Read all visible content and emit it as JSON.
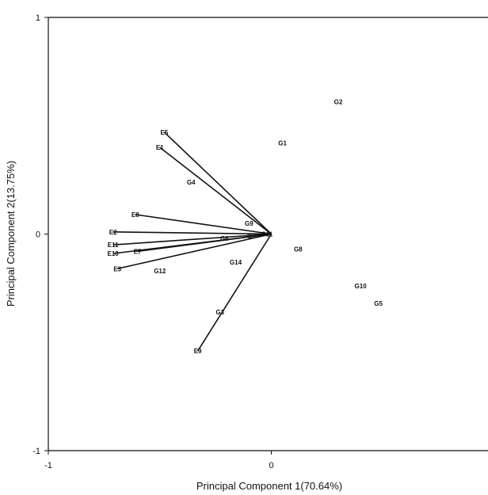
{
  "chart_data": {
    "type": "scatter",
    "title": "",
    "xlabel": "Principal Component 1(70.64%)",
    "ylabel": "Principal Component 2(13.75%)",
    "xlim": [
      -1,
      1
    ],
    "ylim": [
      -1,
      1
    ],
    "xticks": [
      {
        "value": -1,
        "label": "-1"
      },
      {
        "value": 0,
        "label": "0"
      }
    ],
    "yticks": [
      {
        "value": 1,
        "label": "1"
      },
      {
        "value": 0,
        "label": "0"
      },
      {
        "value": -1,
        "label": "-1"
      }
    ],
    "grid": false,
    "environments": [
      {
        "label": "E5",
        "x": -0.48,
        "y": 0.47
      },
      {
        "label": "E1",
        "x": -0.5,
        "y": 0.4
      },
      {
        "label": "E8",
        "x": -0.61,
        "y": 0.09
      },
      {
        "label": "E2",
        "x": -0.71,
        "y": 0.01
      },
      {
        "label": "E11",
        "x": -0.71,
        "y": -0.05
      },
      {
        "label": "E7",
        "x": -0.6,
        "y": -0.08
      },
      {
        "label": "E10",
        "x": -0.71,
        "y": -0.09
      },
      {
        "label": "E3",
        "x": -0.69,
        "y": -0.16
      },
      {
        "label": "E9",
        "x": -0.33,
        "y": -0.54
      }
    ],
    "genotypes": [
      {
        "label": "G1",
        "x": 0.05,
        "y": 0.42
      },
      {
        "label": "G2",
        "x": 0.3,
        "y": 0.61
      },
      {
        "label": "G4",
        "x": -0.36,
        "y": 0.24
      },
      {
        "label": "G9",
        "x": -0.1,
        "y": 0.05
      },
      {
        "label": "G6",
        "x": -0.21,
        "y": -0.02
      },
      {
        "label": "G7",
        "x": -0.09,
        "y": -0.01
      },
      {
        "label": "G11",
        "x": -0.02,
        "y": 0.0
      },
      {
        "label": "G8",
        "x": 0.12,
        "y": -0.07
      },
      {
        "label": "G14",
        "x": -0.16,
        "y": -0.13
      },
      {
        "label": "G12",
        "x": -0.5,
        "y": -0.17
      },
      {
        "label": "G3",
        "x": -0.23,
        "y": -0.36
      },
      {
        "label": "G10",
        "x": 0.4,
        "y": -0.24
      },
      {
        "label": "G5",
        "x": 0.48,
        "y": -0.32
      }
    ]
  }
}
